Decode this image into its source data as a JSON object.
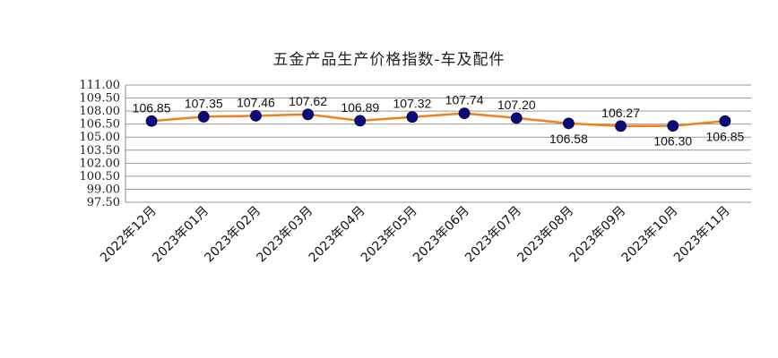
{
  "chart_data": {
    "type": "line",
    "title": "五金产品生产价格指数-车及配件",
    "xlabel": "",
    "ylabel": "",
    "categories": [
      "2022年12月",
      "2023年01月",
      "2023年02月",
      "2023年03月",
      "2023年04月",
      "2023年05月",
      "2023年06月",
      "2023年07月",
      "2023年08月",
      "2023年09月",
      "2023年10月",
      "2023年11月"
    ],
    "series": [
      {
        "values": [
          106.85,
          107.35,
          107.46,
          107.62,
          106.89,
          107.32,
          107.74,
          107.2,
          106.58,
          106.27,
          106.3,
          106.85
        ]
      }
    ],
    "data_labels": [
      "106.85",
      "107.35",
      "107.46",
      "107.62",
      "106.89",
      "107.32",
      "107.74",
      "107.20",
      "106.58",
      "106.27",
      "106.30",
      "106.85"
    ],
    "label_position": [
      "above",
      "above",
      "above",
      "above",
      "above",
      "above",
      "above",
      "above",
      "below",
      "above",
      "below",
      "below"
    ],
    "ylim": [
      97.5,
      111
    ],
    "yticks": [
      "97.50",
      "99.00",
      "100.50",
      "102.00",
      "103.50",
      "105.00",
      "106.50",
      "108.00",
      "109.50",
      "111.00"
    ],
    "grid": true,
    "legend": "none",
    "colors": {
      "line": "#F07F1E",
      "marker": "#0A0A78",
      "grid": "#9A9A9A"
    }
  }
}
